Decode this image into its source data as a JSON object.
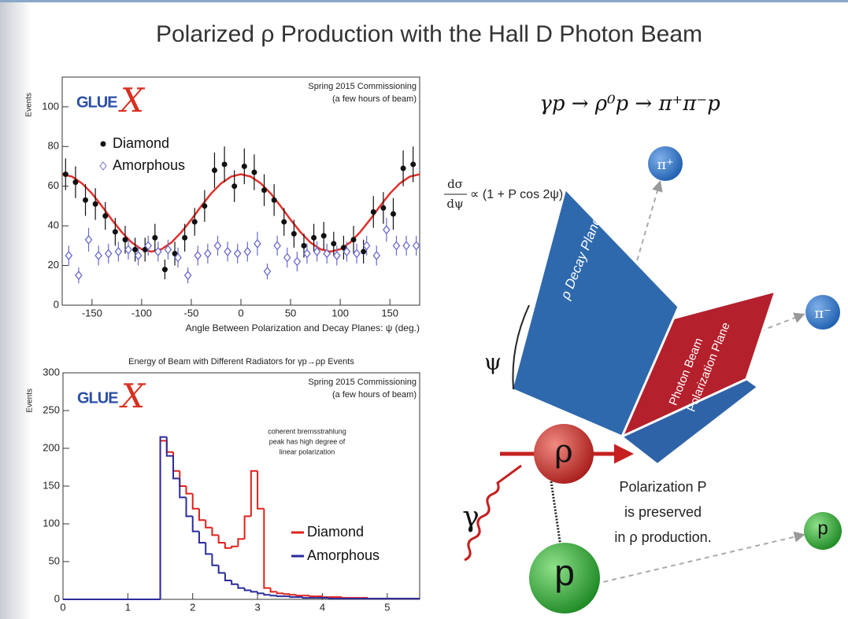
{
  "title": "Polarized ρ Production with the Hall D Photon Beam",
  "chart_data": [
    {
      "type": "scatter",
      "logo": [
        "GLUE",
        "X"
      ],
      "labels": [
        "Spring 2015 Commissioning",
        "(a few hours of beam)"
      ],
      "x_label": "Angle Between Polarization and Decay Planes: ψ (deg.)",
      "y_label": "Events",
      "xlim": [
        -180,
        180
      ],
      "xticks": [
        -150,
        -100,
        -50,
        0,
        50,
        100,
        150
      ],
      "ylim": [
        0,
        115
      ],
      "yticks": [
        0,
        20,
        40,
        60,
        80,
        100
      ],
      "x": [
        -175,
        -165,
        -155,
        -145,
        -135,
        -125,
        -115,
        -105,
        -95,
        -85,
        -75,
        -65,
        -55,
        -45,
        -35,
        -25,
        -15,
        -5,
        5,
        15,
        25,
        35,
        45,
        55,
        65,
        75,
        85,
        95,
        105,
        115,
        125,
        135,
        145,
        155,
        165,
        175
      ],
      "series": [
        {
          "name": "Diamond",
          "color": "#111111",
          "marker": "circle",
          "values": [
            66,
            62,
            53,
            51,
            45,
            37,
            33,
            28,
            28,
            34,
            18,
            26,
            34,
            42,
            50,
            68,
            71,
            60,
            70,
            67,
            58,
            53,
            42,
            36,
            30,
            34,
            35,
            31,
            29,
            33,
            27,
            47,
            49,
            46,
            69,
            71
          ],
          "errors": [
            8,
            8,
            8,
            8,
            7,
            7,
            7,
            6,
            6,
            7,
            5,
            6,
            7,
            7,
            8,
            9,
            9,
            8,
            9,
            9,
            8,
            8,
            7,
            7,
            6,
            7,
            7,
            6,
            6,
            7,
            6,
            8,
            8,
            8,
            9,
            9
          ]
        },
        {
          "name": "Amorphous",
          "color": "#6a6acf",
          "marker": "open-diamond",
          "values": [
            25,
            15,
            33,
            25,
            26,
            27,
            28,
            25,
            30,
            27,
            28,
            24,
            15,
            25,
            26,
            30,
            27,
            26,
            27,
            31,
            17,
            30,
            24,
            22,
            26,
            27,
            26,
            25,
            27,
            26,
            30,
            25,
            38,
            30,
            30,
            30
          ],
          "errors": [
            5,
            4,
            6,
            5,
            5,
            5,
            5,
            5,
            5,
            5,
            5,
            5,
            4,
            5,
            5,
            5,
            5,
            5,
            5,
            6,
            4,
            5,
            5,
            5,
            5,
            5,
            5,
            5,
            5,
            5,
            5,
            5,
            6,
            5,
            5,
            5
          ]
        }
      ],
      "fit": {
        "color": "#e0302a",
        "x": [
          -180,
          -170,
          -160,
          -150,
          -140,
          -130,
          -120,
          -110,
          -100,
          -90,
          -80,
          -70,
          -60,
          -50,
          -40,
          -30,
          -20,
          -10,
          0,
          10,
          20,
          30,
          40,
          50,
          60,
          70,
          80,
          90,
          100,
          110,
          120,
          130,
          140,
          150,
          160,
          170,
          180
        ],
        "values": [
          66,
          64.8,
          61.4,
          56.3,
          49.9,
          43.1,
          36.8,
          31.6,
          28.2,
          27,
          28.2,
          31.6,
          36.8,
          43.1,
          49.9,
          56.3,
          61.4,
          64.8,
          66,
          64.8,
          61.4,
          56.3,
          49.9,
          43.1,
          36.8,
          31.6,
          28.2,
          27,
          28.2,
          31.6,
          36.8,
          43.1,
          49.9,
          56.3,
          61.4,
          64.8,
          66
        ]
      }
    },
    {
      "type": "histogram",
      "title": "Energy of Beam with Different Radiators for γp→ρp Events",
      "logo": [
        "GLUE",
        "X"
      ],
      "labels": [
        "Spring 2015 Commissioning",
        "(a few hours of beam)"
      ],
      "annotation": [
        "coherent bremsstrahlung",
        "peak has high degree of",
        "linear polarization"
      ],
      "y_label": "Events",
      "xlim": [
        0,
        5.5
      ],
      "xticks": [
        0,
        1,
        2,
        3,
        4,
        5
      ],
      "ylim": [
        0,
        300
      ],
      "yticks": [
        0,
        50,
        100,
        150,
        200,
        250,
        300
      ],
      "bins": [
        0,
        0.1,
        0.2,
        0.3,
        0.4,
        0.5,
        0.6,
        0.7,
        0.8,
        0.9,
        1,
        1.1,
        1.2,
        1.3,
        1.4,
        1.5,
        1.6,
        1.7,
        1.8,
        1.9,
        2,
        2.1,
        2.2,
        2.3,
        2.4,
        2.5,
        2.6,
        2.7,
        2.8,
        2.9,
        3,
        3.1,
        3.2,
        3.3,
        3.4,
        3.5,
        3.6,
        3.7,
        3.8,
        3.9,
        4,
        4.1,
        4.2,
        4.3,
        4.4,
        4.5,
        4.6,
        4.7,
        4.8,
        4.9,
        5,
        5.1,
        5.2,
        5.3,
        5.4,
        5.5
      ],
      "series": [
        {
          "name": "Diamond",
          "color": "#e0201b",
          "values": [
            0,
            0,
            0,
            0,
            0,
            0,
            0,
            0,
            0,
            0,
            0,
            0,
            0,
            0,
            0,
            210,
            195,
            170,
            150,
            140,
            120,
            105,
            95,
            85,
            75,
            68,
            70,
            80,
            110,
            170,
            120,
            15,
            10,
            8,
            7,
            6,
            5,
            5,
            4,
            4,
            3,
            3,
            3,
            2,
            2,
            2,
            2,
            1,
            1,
            1,
            1,
            1,
            1,
            1,
            1
          ]
        },
        {
          "name": "Amorphous",
          "color": "#2b2b9c",
          "values": [
            0,
            0,
            0,
            0,
            0,
            0,
            0,
            0,
            0,
            0,
            0,
            0,
            0,
            0,
            0,
            215,
            190,
            160,
            135,
            110,
            90,
            75,
            60,
            45,
            35,
            25,
            20,
            15,
            12,
            10,
            8,
            6,
            5,
            4,
            4,
            3,
            3,
            2,
            2,
            2,
            2,
            1,
            1,
            1,
            1,
            1,
            1,
            1,
            1,
            1,
            1,
            1,
            1,
            1,
            1
          ]
        }
      ]
    }
  ],
  "diagram": {
    "equation": "γp → ρ⁰p → π⁺π⁻p",
    "rate": {
      "numerator": "dσ",
      "denominator": "dψ",
      "expression": "∝ (1 + P cos 2ψ)"
    },
    "particles": [
      "π⁺",
      "π⁻",
      "ρ",
      "p",
      "p",
      "γ"
    ],
    "angle": "ψ",
    "planes": [
      "ρ Decay Plane",
      "Photon Beam",
      "Polarization Plane"
    ],
    "note": [
      "Polarization P",
      "is preserved",
      "in ρ production."
    ]
  }
}
